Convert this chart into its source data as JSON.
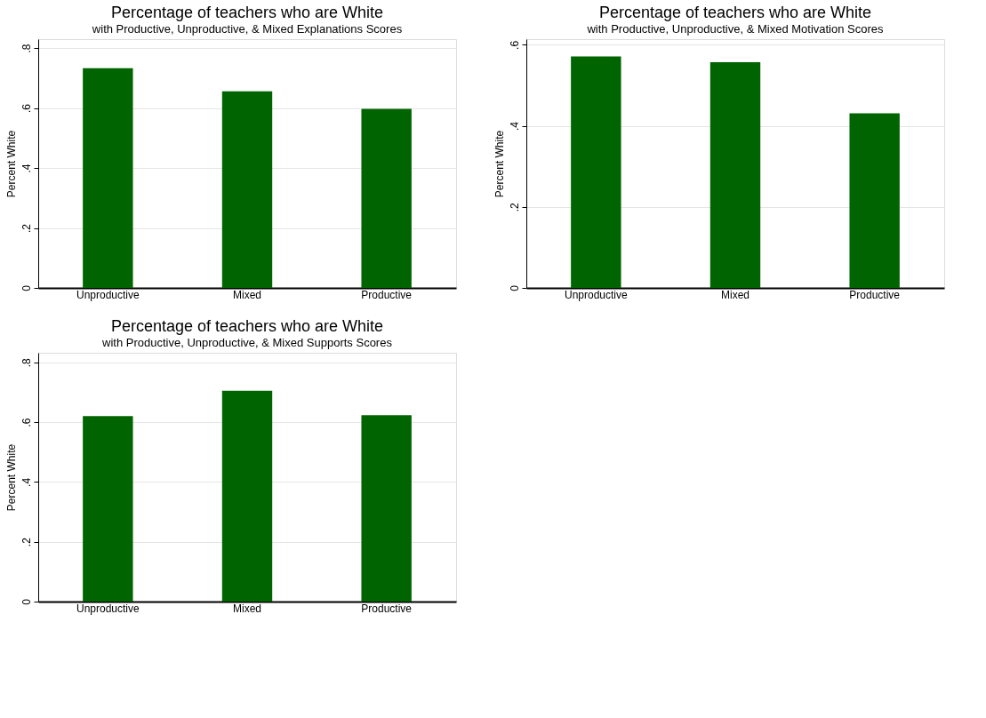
{
  "chart_data": [
    {
      "type": "bar",
      "title": "Percentage of teachers who are White",
      "subtitle": "with Productive, Unproductive, & Mixed Explanations Scores",
      "ylabel": "Percent White",
      "categories": [
        "Unproductive",
        "Mixed",
        "Productive"
      ],
      "values": [
        0.733,
        0.656,
        0.597
      ],
      "color": "#006400",
      "ylim": [
        0,
        0.83
      ],
      "yticks": [
        {
          "value": 0,
          "label": "0"
        },
        {
          "value": 0.2,
          "label": ".2"
        },
        {
          "value": 0.4,
          "label": ".4"
        },
        {
          "value": 0.6,
          "label": ".6"
        },
        {
          "value": 0.8,
          "label": ".8"
        }
      ],
      "grid": "y"
    },
    {
      "type": "bar",
      "title": "Percentage of teachers who are White",
      "subtitle": "with Productive, Unproductive, & Mixed Motivation Scores",
      "ylabel": "Percent White",
      "categories": [
        "Unproductive",
        "Mixed",
        "Productive"
      ],
      "values": [
        0.571,
        0.557,
        0.431
      ],
      "color": "#006400",
      "ylim": [
        0,
        0.614
      ],
      "yticks": [
        {
          "value": 0,
          "label": "0"
        },
        {
          "value": 0.2,
          "label": ".2"
        },
        {
          "value": 0.4,
          "label": ".4"
        },
        {
          "value": 0.6,
          "label": ".6"
        }
      ],
      "grid": "y"
    },
    {
      "type": "bar",
      "title": "Percentage of teachers who are White",
      "subtitle": "with Productive, Unproductive, & Mixed Supports Scores",
      "ylabel": "Percent White",
      "categories": [
        "Unproductive",
        "Mixed",
        "Productive"
      ],
      "values": [
        0.62,
        0.705,
        0.623
      ],
      "color": "#006400",
      "ylim": [
        0,
        0.832
      ],
      "yticks": [
        {
          "value": 0,
          "label": "0"
        },
        {
          "value": 0.2,
          "label": ".2"
        },
        {
          "value": 0.4,
          "label": ".4"
        },
        {
          "value": 0.6,
          "label": ".6"
        },
        {
          "value": 0.8,
          "label": ".8"
        }
      ],
      "grid": "y"
    }
  ]
}
